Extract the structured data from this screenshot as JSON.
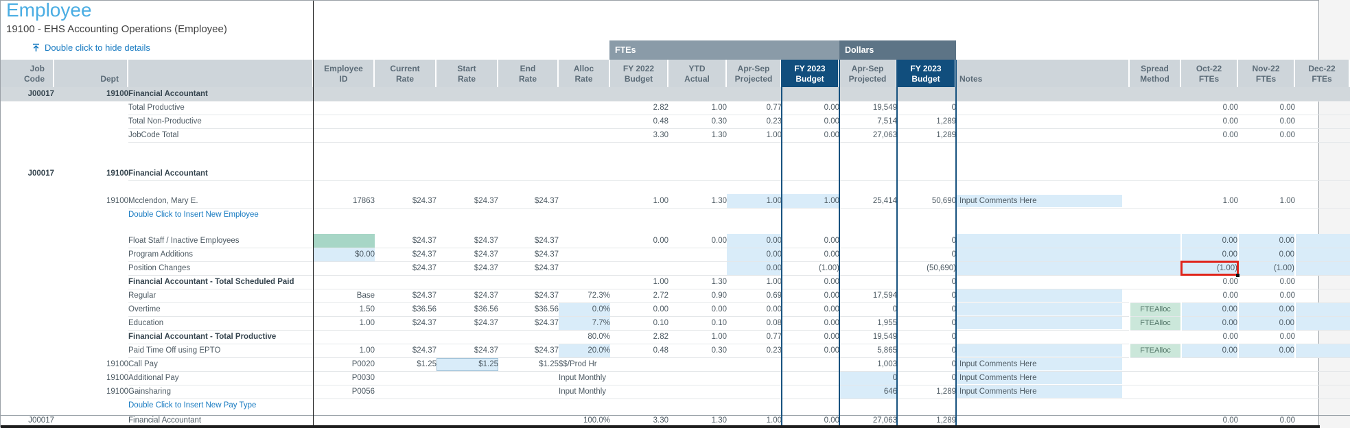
{
  "page": {
    "title": "Employee",
    "subtitle": "19100 - EHS Accounting Operations (Employee)",
    "hide_details_link": "Double click to hide details"
  },
  "groups": {
    "ftes": "FTEs",
    "dollars": "Dollars"
  },
  "colors": {
    "accent_title": "#4aade3",
    "link": "#177ac1",
    "header_gray": "#ced5da",
    "band_ftes": "#8a9ba8",
    "band_dollars": "#5d7486",
    "budget_navy": "#114e7d",
    "input_blue": "#d9ecf9",
    "float_teal": "#a7d6c6",
    "spread_green": "#cbe7da",
    "highlight_red": "#e0241a"
  },
  "columns": [
    {
      "id": "job",
      "l1": "Job",
      "l2": "Code"
    },
    {
      "id": "dept",
      "l1": "",
      "l2": "Dept"
    },
    {
      "id": "desc",
      "l1": "",
      "l2": ""
    },
    {
      "id": "emp",
      "l1": "Employee",
      "l2": "ID"
    },
    {
      "id": "cur",
      "l1": "Current",
      "l2": "Rate"
    },
    {
      "id": "start",
      "l1": "Start",
      "l2": "Rate"
    },
    {
      "id": "end",
      "l1": "End",
      "l2": "Rate"
    },
    {
      "id": "alloc",
      "l1": "Alloc",
      "l2": "Rate"
    },
    {
      "id": "fy22",
      "l1": "FY 2022",
      "l2": "Budget"
    },
    {
      "id": "ytd",
      "l1": "YTD",
      "l2": "Actual"
    },
    {
      "id": "aspf",
      "l1": "Apr-Sep",
      "l2": "Projected"
    },
    {
      "id": "f23f",
      "l1": "FY 2023",
      "l2": "Budget",
      "navy": true
    },
    {
      "id": "aspd",
      "l1": "Apr-Sep",
      "l2": "Projected"
    },
    {
      "id": "f23d",
      "l1": "FY 2023",
      "l2": "Budget",
      "navy": true
    },
    {
      "id": "notes",
      "l1": "",
      "l2": "Notes"
    },
    {
      "id": "spread",
      "l1": "Spread",
      "l2": "Method"
    },
    {
      "id": "oct",
      "l1": "Oct-22",
      "l2": "FTEs"
    },
    {
      "id": "nov",
      "l1": "Nov-22",
      "l2": "FTEs"
    },
    {
      "id": "dec",
      "l1": "Dec-22",
      "l2": "FTEs"
    }
  ],
  "rows": [
    {
      "name": "jobcode-summary-header-row",
      "cls": "section line",
      "cells": {
        "job": "J00017",
        "dept": "19100",
        "desc": "Financial Accountant"
      }
    },
    {
      "name": "total-productive-row",
      "cls": "line",
      "cells": {
        "desc": "Total Productive",
        "fy22": "2.82",
        "ytd": "1.00",
        "aspf": "0.77",
        "f23f": "0.00",
        "aspd": "19,549",
        "f23d": "0",
        "oct": "0.00",
        "nov": "0.00"
      }
    },
    {
      "name": "total-non-productive-row",
      "cls": "line",
      "cells": {
        "desc": "Total Non-Productive",
        "fy22": "0.48",
        "ytd": "0.30",
        "aspf": "0.23",
        "f23f": "0.00",
        "aspd": "7,514",
        "f23d": "1,289",
        "oct": "0.00",
        "nov": "0.00"
      }
    },
    {
      "name": "jobcode-total-row",
      "cls": "line",
      "cells": {
        "desc": "JobCode Total",
        "fy22": "3.30",
        "ytd": "1.30",
        "aspf": "1.00",
        "f23f": "0.00",
        "aspd": "27,063",
        "f23d": "1,289",
        "oct": "0.00",
        "nov": "0.00"
      }
    },
    {
      "name": "spacer-row",
      "cells": {}
    },
    {
      "name": "spacer-row",
      "cls": "sp16",
      "cells": {}
    },
    {
      "name": "jobcode-detail-header-row",
      "cls": "boldrow line",
      "cells": {
        "job": "J00017",
        "dept": "19100",
        "desc": "Financial Accountant"
      }
    },
    {
      "name": "spacer-row",
      "cells": {}
    },
    {
      "name": "employee-row-mcclendon",
      "cls": "line",
      "cells": {
        "dept": "19100",
        "desc": "Mcclendon, Mary E.",
        "emp": "17863",
        "cur": "$24.37",
        "start": "$24.37",
        "end": "$24.37",
        "fy22": "1.00",
        "ytd": "1.30",
        "aspf": {
          "v": "1.00",
          "c": "b",
          "i": 1
        },
        "f23f": {
          "v": "1.00",
          "c": "b",
          "i": 1
        },
        "aspd": "25,414",
        "f23d": "50,690",
        "notes": {
          "v": "Input Comments Here",
          "c": "nb",
          "i": 1,
          "n": "notes-input"
        },
        "oct": "1.00",
        "nov": "1.00"
      }
    },
    {
      "name": "insert-new-employee-row",
      "cells": {
        "desc": {
          "v": "Double Click to Insert New Employee",
          "c": "lnk",
          "i": 1,
          "n": "insert-new-employee-link"
        }
      }
    },
    {
      "name": "spacer-row",
      "cls": "sp18",
      "cells": {}
    },
    {
      "name": "float-staff-row",
      "cls": "line",
      "cells": {
        "desc": "Float Staff / Inactive Employees",
        "emp": {
          "v": "",
          "c": "t",
          "i": 1,
          "n": "float-staff-employee-id-cell"
        },
        "cur": "$24.37",
        "start": "$24.37",
        "end": "$24.37",
        "fy22": "0.00",
        "ytd": "0.00",
        "aspf": {
          "v": "0.00",
          "c": "b",
          "i": 1
        },
        "f23f": "0.00",
        "f23d": "0",
        "notes": {
          "v": "",
          "c": "b",
          "i": 1
        },
        "spread": {
          "v": "",
          "c": "b",
          "i": 1
        },
        "oct": {
          "v": "0.00",
          "c": "b",
          "i": 1
        },
        "nov": {
          "v": "0.00",
          "c": "b",
          "i": 1
        },
        "dec": {
          "v": "",
          "c": "b",
          "i": 1
        }
      }
    },
    {
      "name": "program-additions-row",
      "cls": "line",
      "cells": {
        "desc": "Program Additions",
        "emp": {
          "v": "$0.00",
          "c": "b",
          "i": 1
        },
        "cur": "$24.37",
        "start": "$24.37",
        "end": "$24.37",
        "aspf": {
          "v": "0.00",
          "c": "b",
          "i": 1
        },
        "f23f": "0.00",
        "f23d": "0",
        "notes": {
          "v": "",
          "c": "b",
          "i": 1
        },
        "spread": {
          "v": "",
          "c": "b",
          "i": 1
        },
        "oct": {
          "v": "0.00",
          "c": "b",
          "i": 1
        },
        "nov": {
          "v": "0.00",
          "c": "b",
          "i": 1
        },
        "dec": {
          "v": "",
          "c": "b",
          "i": 1
        }
      }
    },
    {
      "name": "position-changes-row",
      "cls": "line",
      "cells": {
        "desc": "Position Changes",
        "cur": "$24.37",
        "start": "$24.37",
        "end": "$24.37",
        "aspf": {
          "v": "0.00",
          "c": "b",
          "i": 1
        },
        "f23f": "(1.00)",
        "f23d": "(50,690)",
        "notes": {
          "v": "",
          "c": "b",
          "i": 1
        },
        "spread": {
          "v": "",
          "c": "b",
          "i": 1
        },
        "oct": {
          "v": "(1.00)",
          "c": "b rb",
          "i": 1,
          "n": "position-changes-oct-fte-cell-red-box"
        },
        "nov": {
          "v": "(1.00)",
          "c": "b",
          "i": 1
        },
        "dec": {
          "v": "",
          "c": "b",
          "i": 1
        }
      }
    },
    {
      "name": "total-scheduled-paid-row",
      "cls": "line tot",
      "cells": {
        "desc": {
          "v": "Financial Accountant - Total Scheduled Paid",
          "c": "bold"
        },
        "fy22": "1.00",
        "ytd": "1.30",
        "aspf": "1.00",
        "f23f": "0.00",
        "f23d": "0",
        "oct": "0.00",
        "nov": "0.00"
      }
    },
    {
      "name": "regular-row",
      "cls": "line",
      "cells": {
        "desc": "Regular",
        "emp": "Base",
        "cur": "$24.37",
        "start": "$24.37",
        "end": "$24.37",
        "alloc": "72.3%",
        "fy22": "2.72",
        "ytd": "0.90",
        "aspf": "0.69",
        "f23f": "0.00",
        "aspd": "17,594",
        "f23d": "0",
        "notes": {
          "v": "",
          "c": "nb",
          "i": 1
        },
        "oct": "0.00",
        "nov": "0.00"
      }
    },
    {
      "name": "overtime-row",
      "cls": "line",
      "cells": {
        "desc": "Overtime",
        "emp": "1.50",
        "cur": "$36.56",
        "start": "$36.56",
        "end": "$36.56",
        "alloc": {
          "v": "0.0%",
          "c": "b",
          "i": 1
        },
        "fy22": "0.00",
        "ytd": "0.00",
        "aspf": "0.00",
        "f23f": "0.00",
        "aspd": "0",
        "f23d": "0",
        "notes": {
          "v": "",
          "c": "nb",
          "i": 1
        },
        "spread": {
          "v": "FTEAlloc",
          "c": "g",
          "i": 1,
          "n": "spread-method-cell"
        },
        "oct": {
          "v": "0.00",
          "c": "b",
          "i": 1
        },
        "nov": {
          "v": "0.00",
          "c": "b",
          "i": 1
        },
        "dec": {
          "v": "",
          "c": "b",
          "i": 1
        }
      }
    },
    {
      "name": "education-row",
      "cls": "line",
      "cells": {
        "desc": "Education",
        "emp": "1.00",
        "cur": "$24.37",
        "start": "$24.37",
        "end": "$24.37",
        "alloc": {
          "v": "7.7%",
          "c": "b",
          "i": 1
        },
        "fy22": "0.10",
        "ytd": "0.10",
        "aspf": "0.08",
        "f23f": "0.00",
        "aspd": "1,955",
        "f23d": "0",
        "notes": {
          "v": "",
          "c": "nb",
          "i": 1
        },
        "spread": {
          "v": "FTEAlloc",
          "c": "g",
          "i": 1,
          "n": "spread-method-cell"
        },
        "oct": {
          "v": "0.00",
          "c": "b",
          "i": 1
        },
        "nov": {
          "v": "0.00",
          "c": "b",
          "i": 1
        },
        "dec": {
          "v": "",
          "c": "b",
          "i": 1
        }
      }
    },
    {
      "name": "total-productive-subtotal-row",
      "cls": "line tot",
      "cells": {
        "desc": {
          "v": "Financial Accountant - Total Productive",
          "c": "bold"
        },
        "alloc": "80.0%",
        "fy22": "2.82",
        "ytd": "1.00",
        "aspf": "0.77",
        "f23f": "0.00",
        "aspd": "19,549",
        "f23d": "0",
        "oct": "0.00",
        "nov": "0.00"
      }
    },
    {
      "name": "pto-row",
      "cls": "line",
      "cells": {
        "desc": "Paid Time Off using EPTO",
        "emp": "1.00",
        "cur": "$24.37",
        "start": "$24.37",
        "end": "$24.37",
        "alloc": {
          "v": "20.0%",
          "c": "b",
          "i": 1
        },
        "fy22": "0.48",
        "ytd": "0.30",
        "aspf": "0.23",
        "f23f": "0.00",
        "aspd": "5,865",
        "f23d": "0",
        "notes": {
          "v": "",
          "c": "nb",
          "i": 1
        },
        "spread": {
          "v": "FTEAlloc",
          "c": "g",
          "i": 1,
          "n": "spread-method-cell"
        },
        "oct": {
          "v": "0.00",
          "c": "b",
          "i": 1
        },
        "nov": {
          "v": "0.00",
          "c": "b",
          "i": 1
        },
        "dec": {
          "v": "",
          "c": "b",
          "i": 1
        }
      }
    },
    {
      "name": "call-pay-row",
      "cls": "line",
      "cells": {
        "dept": "19100",
        "desc": "Call Pay",
        "emp": "P0020",
        "cur": "$1.25",
        "start": {
          "v": "$1.25",
          "c": "sel",
          "i": 1,
          "n": "start-rate-selected-cell"
        },
        "end": "$1.25",
        "alloc": {
          "v": "$$/Prod Hr",
          "c": "lft"
        },
        "aspd": "1,003",
        "f23d": "0",
        "notes": {
          "v": "Input Comments Here",
          "c": "nb",
          "i": 1,
          "n": "notes-input"
        }
      }
    },
    {
      "name": "additional-pay-row",
      "cls": "line",
      "cells": {
        "dept": "19100",
        "desc": "Additional Pay",
        "emp": "P0030",
        "alloc": {
          "v": "Input Monthly",
          "c": "lft"
        },
        "aspd": {
          "v": "0",
          "c": "b",
          "i": 1
        },
        "f23d": "0",
        "notes": {
          "v": "Input Comments Here",
          "c": "nb",
          "i": 1,
          "n": "notes-input"
        }
      }
    },
    {
      "name": "gainsharing-row",
      "cls": "line",
      "cells": {
        "dept": "19100",
        "desc": "Gainsharing",
        "emp": "P0056",
        "alloc": {
          "v": "Input Monthly",
          "c": "lft"
        },
        "aspd": {
          "v": "646",
          "c": "b",
          "i": 1
        },
        "f23d": "1,289",
        "notes": {
          "v": "Input Comments Here",
          "c": "nb",
          "i": 1,
          "n": "notes-input"
        }
      }
    },
    {
      "name": "insert-new-pay-type-row",
      "cells": {
        "desc": {
          "v": "Double Click to Insert New Pay Type",
          "c": "lnk",
          "i": 1,
          "n": "insert-new-pay-type-link"
        }
      }
    },
    {
      "name": "spacer-row",
      "cls": "sp4",
      "cells": {}
    },
    {
      "name": "jobcode-grand-total-row",
      "cls": "grand",
      "cells": {
        "job": "J00017",
        "desc": "Financial Accountant",
        "alloc": "100.0%",
        "fy22": "3.30",
        "ytd": "1.30",
        "aspf": "1.00",
        "f23f": "0.00",
        "aspd": "27,063",
        "f23d": "1,289",
        "oct": "0.00",
        "nov": "0.00"
      }
    }
  ]
}
